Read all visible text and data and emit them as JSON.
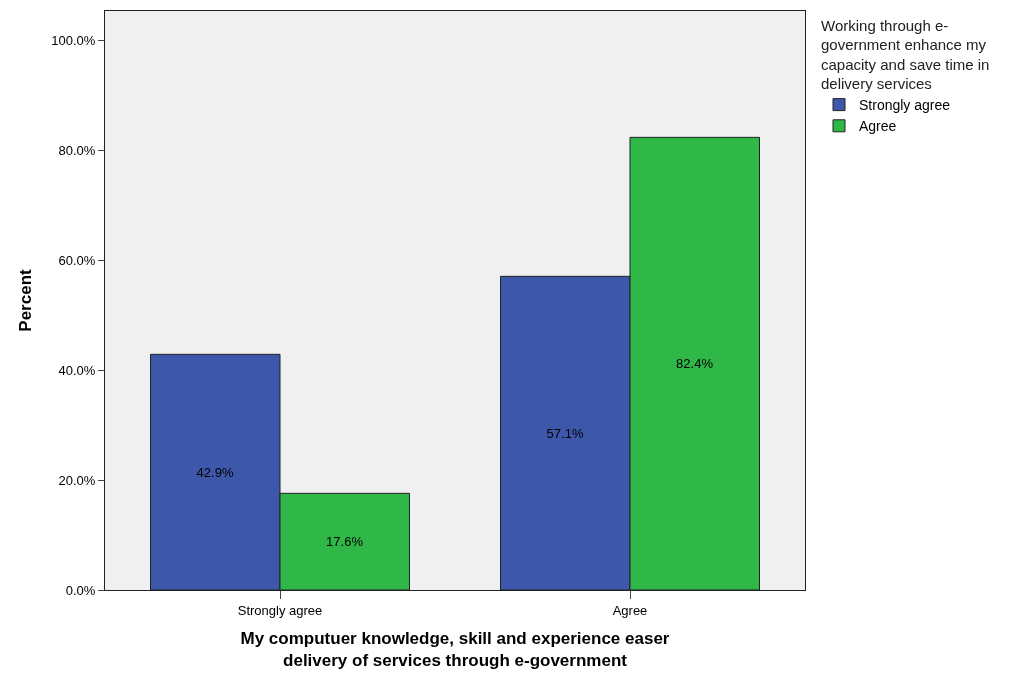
{
  "chart_data": {
    "type": "bar",
    "xlabel": "My computuer knowledge, skill and experience easer\ndelivery of services through e-government",
    "ylabel": "Percent",
    "legend_title": "Working through e-\ngovernment enhance my\ncapacity and save time in\ndelivery services",
    "categories": [
      "Strongly agree",
      "Agree"
    ],
    "series": [
      {
        "name": "Strongly agree",
        "color": "#3d57aa",
        "values": [
          42.9,
          57.1
        ],
        "value_labels": [
          "42.9%",
          "57.1%"
        ]
      },
      {
        "name": "Agree",
        "color": "#2fb748",
        "values": [
          17.6,
          82.4
        ],
        "value_labels": [
          "17.6%",
          "82.4%"
        ]
      }
    ],
    "ylim": [
      0,
      105.4
    ],
    "yticks": [
      {
        "value": 0,
        "label": "0.0%"
      },
      {
        "value": 20,
        "label": "20.0%"
      },
      {
        "value": 40,
        "label": "40.0%"
      },
      {
        "value": 60,
        "label": "60.0%"
      },
      {
        "value": 80,
        "label": "80.0%"
      },
      {
        "value": 100,
        "label": "100.0%"
      }
    ],
    "grid": false,
    "legend": "top right"
  }
}
